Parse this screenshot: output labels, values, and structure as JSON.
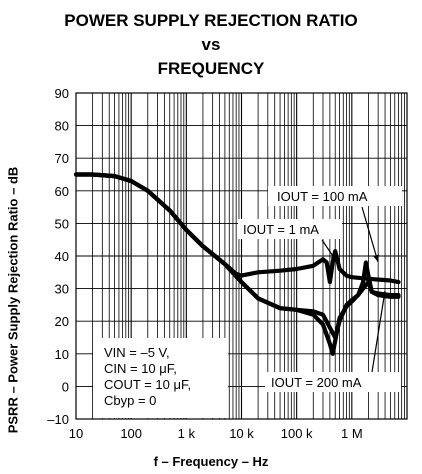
{
  "title_lines": [
    "POWER SUPPLY REJECTION RATIO",
    "vs",
    "FREQUENCY"
  ],
  "chart_data": {
    "type": "line",
    "title": "POWER SUPPLY REJECTION RATIO vs FREQUENCY",
    "xlabel": "f – Frequency – Hz",
    "ylabel": "PSRR – Power Supply Rejection Ratio – dB",
    "x_scale": "log",
    "xlim": [
      10,
      10000000
    ],
    "ylim": [
      -10,
      90
    ],
    "x_ticks": [
      "10",
      "100",
      "1 k",
      "10 k",
      "100 k",
      "1 M"
    ],
    "y_ticks": [
      "90",
      "80",
      "70",
      "60",
      "50",
      "40",
      "30",
      "20",
      "10",
      "0",
      "–10"
    ],
    "grid": true,
    "conditions": [
      "VIN = –5 V,",
      "CIN = 10 μF,",
      "COUT = 10 μF,",
      "Cbyp = 0"
    ],
    "series": [
      {
        "name": "IOUT = 1 mA",
        "points": [
          [
            10,
            65
          ],
          [
            20,
            65
          ],
          [
            50,
            64.5
          ],
          [
            100,
            63
          ],
          [
            200,
            60
          ],
          [
            500,
            54
          ],
          [
            1000,
            48
          ],
          [
            2000,
            43
          ],
          [
            5000,
            37.5
          ],
          [
            8000,
            34.5
          ],
          [
            10000,
            34
          ],
          [
            20000,
            35
          ],
          [
            50000,
            35.5
          ],
          [
            100000,
            36
          ],
          [
            200000,
            37
          ],
          [
            300000,
            39
          ],
          [
            350000,
            38
          ],
          [
            400000,
            32
          ],
          [
            450000,
            38
          ],
          [
            500000,
            41.5
          ],
          [
            600000,
            36
          ],
          [
            800000,
            34
          ],
          [
            1000000,
            33.5
          ],
          [
            2000000,
            33
          ],
          [
            5000000,
            32.5
          ],
          [
            7000000,
            32
          ]
        ]
      },
      {
        "name": "IOUT = 100 mA",
        "points": [
          [
            10,
            65
          ],
          [
            20,
            65
          ],
          [
            50,
            64.5
          ],
          [
            100,
            63
          ],
          [
            200,
            60
          ],
          [
            500,
            54
          ],
          [
            1000,
            48
          ],
          [
            2000,
            43
          ],
          [
            5000,
            37.5
          ],
          [
            10000,
            32
          ],
          [
            20000,
            27
          ],
          [
            50000,
            24
          ],
          [
            100000,
            23.5
          ],
          [
            200000,
            23
          ],
          [
            300000,
            22
          ],
          [
            400000,
            18
          ],
          [
            500000,
            15
          ],
          [
            600000,
            20
          ],
          [
            800000,
            25
          ],
          [
            1000000,
            26.5
          ],
          [
            1300000,
            28
          ],
          [
            1600000,
            32
          ],
          [
            1800000,
            38
          ],
          [
            2000000,
            34
          ],
          [
            2300000,
            29
          ],
          [
            3000000,
            28
          ],
          [
            5000000,
            27.5
          ],
          [
            7000000,
            27.5
          ]
        ]
      },
      {
        "name": "IOUT = 200 mA",
        "points": [
          [
            10,
            65
          ],
          [
            20,
            65
          ],
          [
            50,
            64.5
          ],
          [
            100,
            63
          ],
          [
            200,
            60
          ],
          [
            500,
            54
          ],
          [
            1000,
            48
          ],
          [
            2000,
            43
          ],
          [
            5000,
            37.5
          ],
          [
            10000,
            32
          ],
          [
            20000,
            27
          ],
          [
            50000,
            24
          ],
          [
            100000,
            23.5
          ],
          [
            200000,
            22
          ],
          [
            300000,
            19
          ],
          [
            400000,
            13
          ],
          [
            450000,
            10
          ],
          [
            500000,
            14
          ],
          [
            600000,
            21
          ],
          [
            800000,
            24.5
          ],
          [
            1000000,
            26
          ],
          [
            1300000,
            28
          ],
          [
            1600000,
            30
          ],
          [
            2000000,
            32
          ],
          [
            2300000,
            29
          ],
          [
            3000000,
            28.5
          ],
          [
            5000000,
            28
          ],
          [
            7000000,
            28
          ]
        ]
      }
    ]
  }
}
